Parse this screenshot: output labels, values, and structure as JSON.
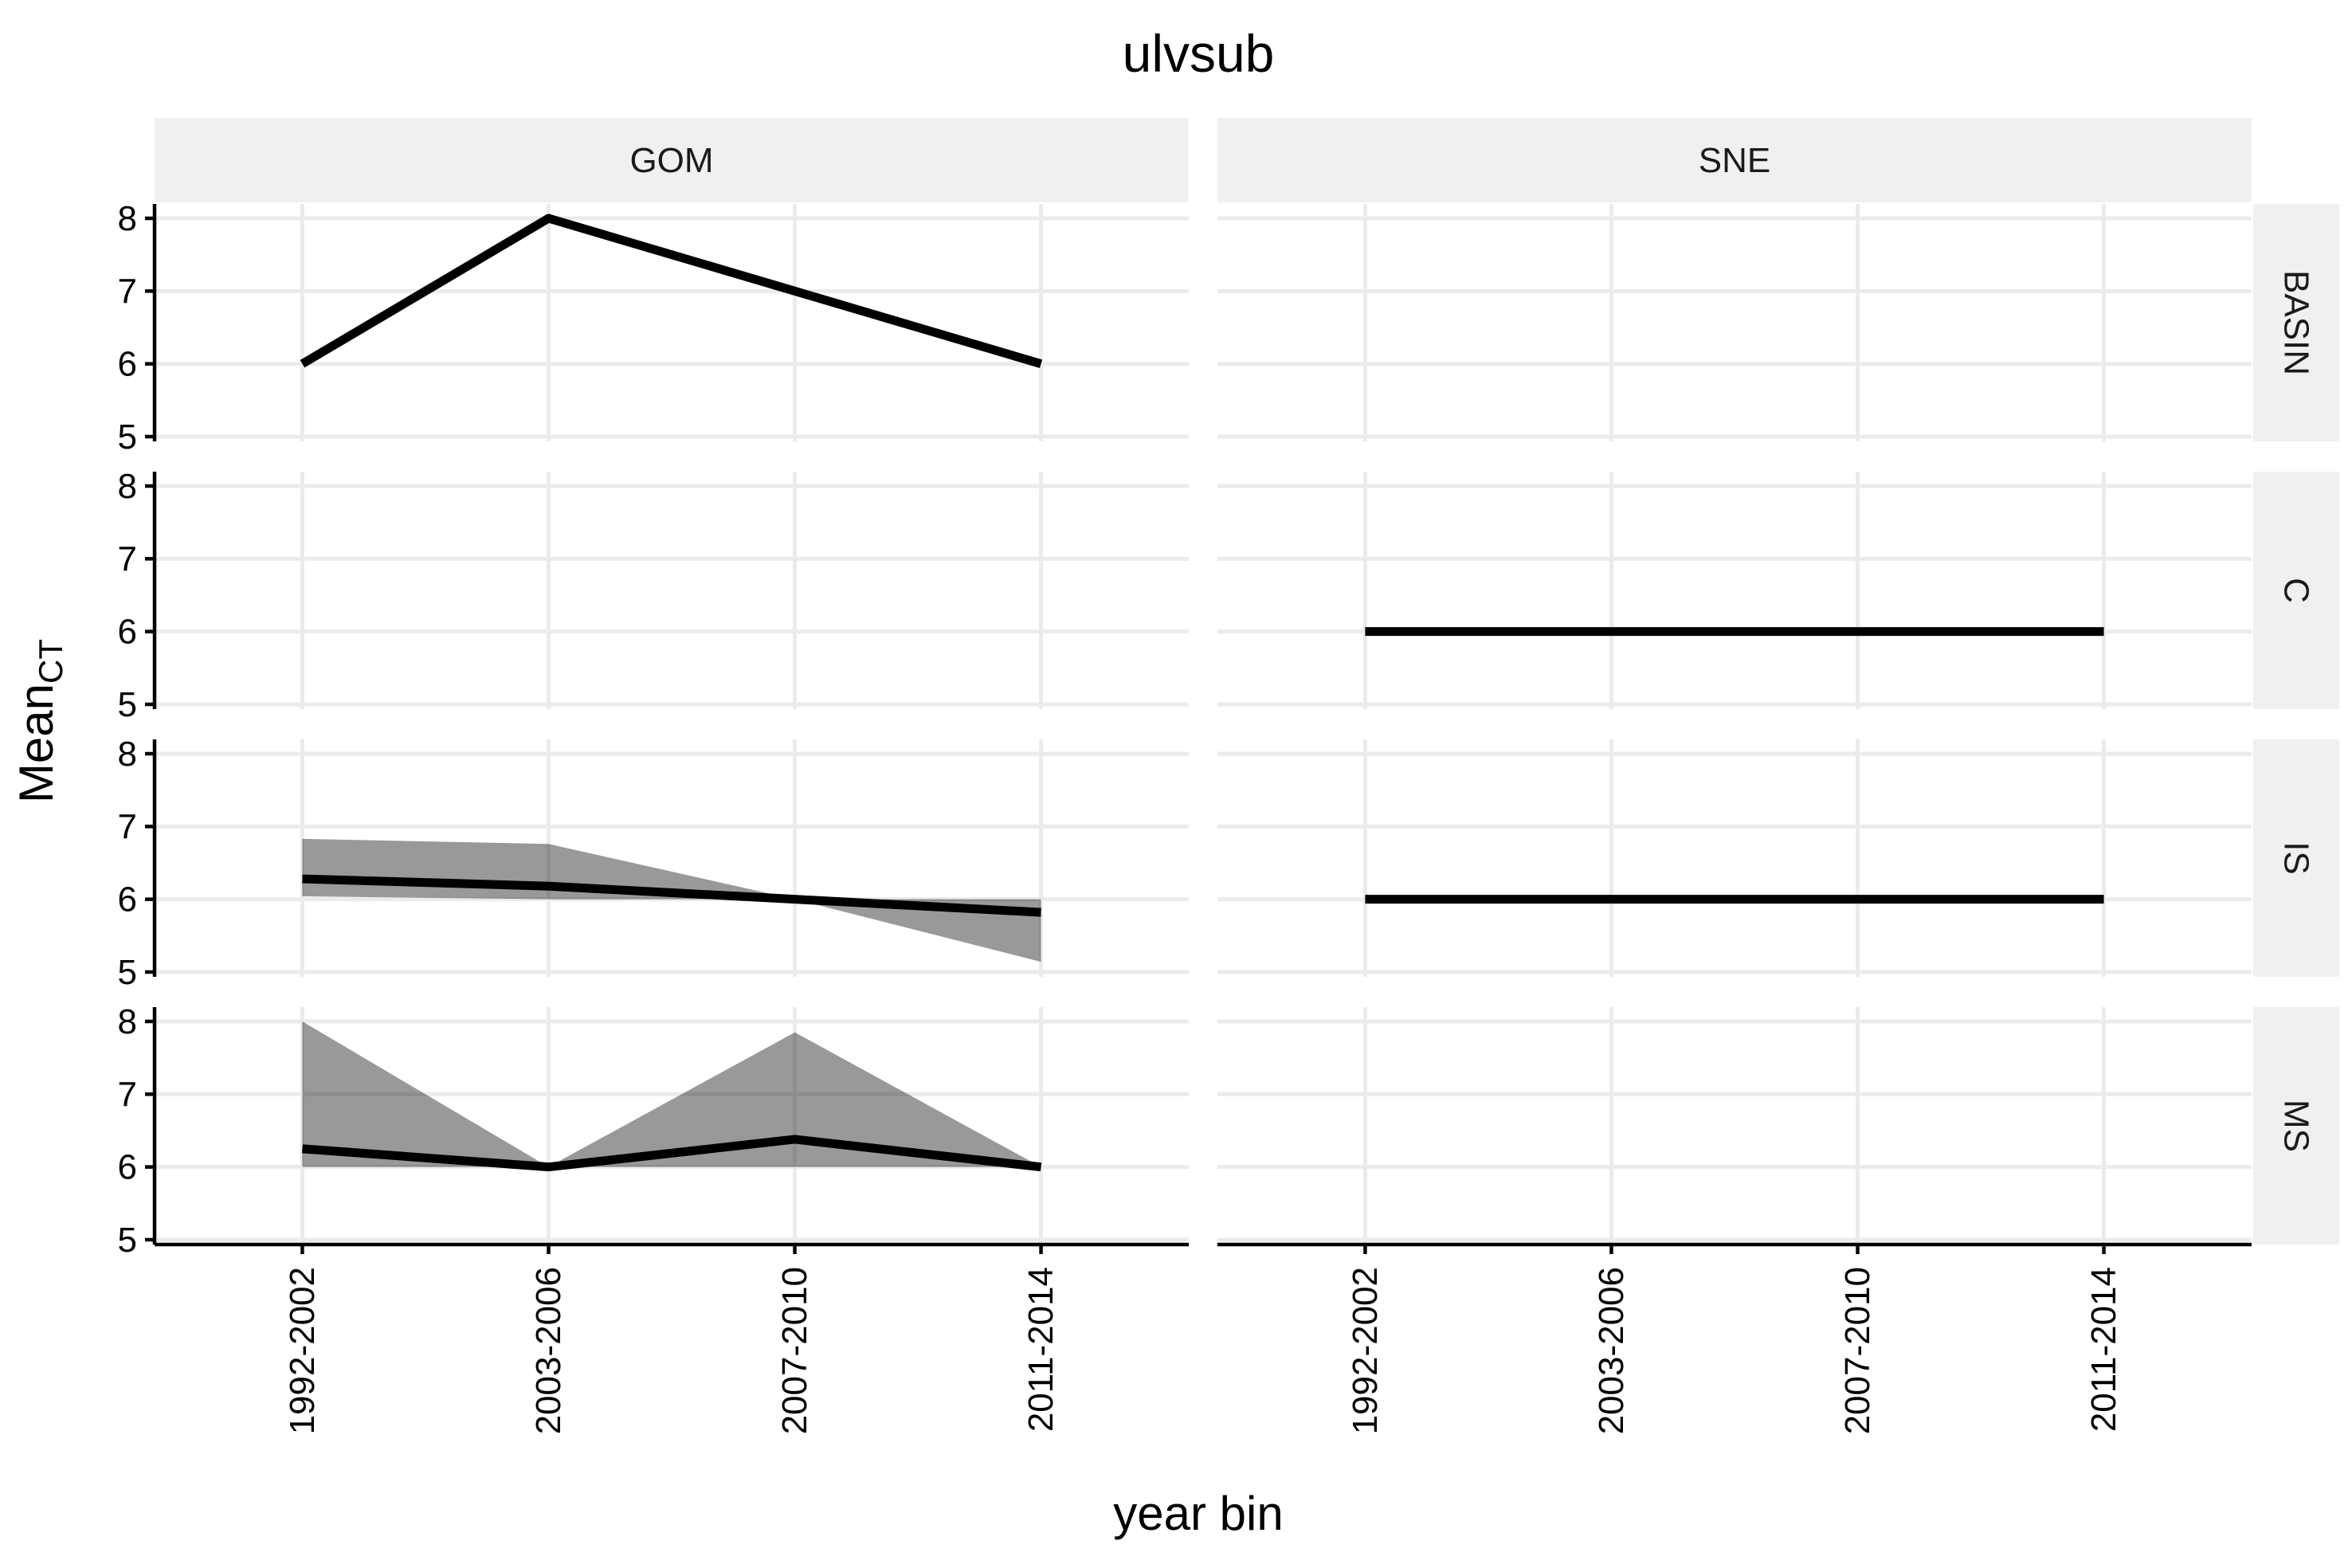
{
  "chart_data": {
    "type": "line",
    "title": "ulvsub",
    "xlabel": "year bin",
    "ylabel_main": "Mean",
    "ylabel_sub": "CT",
    "categories": [
      "1992-2002",
      "2003-2006",
      "2007-2010",
      "2011-2014"
    ],
    "yticks": [
      5,
      6,
      7,
      8
    ],
    "ylim": [
      5,
      8
    ],
    "facet_cols": [
      "GOM",
      "SNE"
    ],
    "facet_rows": [
      "BASIN",
      "C",
      "IS",
      "MS"
    ],
    "colors": {
      "line": "#000000",
      "ribbon": "#000000",
      "strip": "#f0f0f0",
      "grid": "#ebebeb"
    },
    "panels": [
      {
        "col": "GOM",
        "row": "BASIN",
        "mean": [
          6,
          8,
          7,
          6
        ]
      },
      {
        "col": "SNE",
        "row": "BASIN"
      },
      {
        "col": "GOM",
        "row": "C"
      },
      {
        "col": "SNE",
        "row": "C",
        "mean": [
          6,
          6,
          6,
          6
        ]
      },
      {
        "col": "GOM",
        "row": "IS",
        "mean": [
          6.28,
          6.18,
          6.0,
          5.82
        ],
        "lower": [
          6.04,
          6.0,
          6.0,
          5.14
        ],
        "upper": [
          6.83,
          6.76,
          6.0,
          6.0
        ]
      },
      {
        "col": "SNE",
        "row": "IS",
        "mean": [
          6,
          6,
          6,
          6
        ]
      },
      {
        "col": "GOM",
        "row": "MS",
        "mean": [
          6.25,
          6.0,
          6.38,
          6.0
        ],
        "lower": [
          6.0,
          6.0,
          6.0,
          6.0
        ],
        "upper": [
          8.0,
          6.0,
          7.85,
          6.0
        ]
      },
      {
        "col": "SNE",
        "row": "MS"
      }
    ]
  }
}
